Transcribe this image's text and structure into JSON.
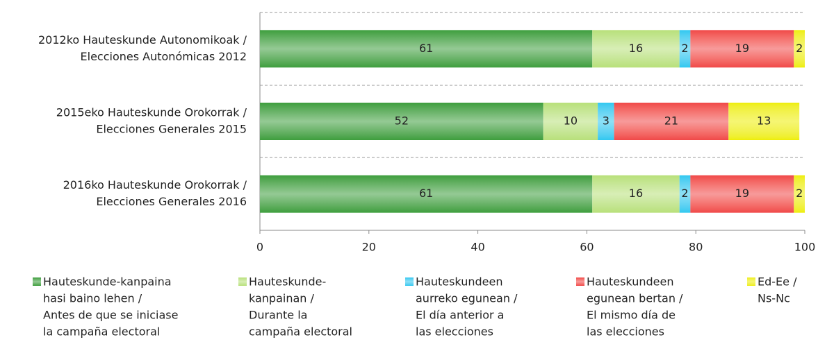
{
  "chart_data": {
    "type": "stacked-barh",
    "categories": [
      [
        "2012ko Hauteskunde Autonomikoak /",
        "Elecciones Autonómicas 2012"
      ],
      [
        "2015eko Hauteskunde Orokorrak /",
        "Elecciones Generales 2015"
      ],
      [
        "2016ko Hauteskunde Orokorrak /",
        "Elecciones Generales 2016"
      ]
    ],
    "series": [
      {
        "name": [
          "Hauteskunde-kanpaina",
          "hasi baino lehen /",
          "Antes de que se iniciase",
          "la campaña electoral"
        ],
        "color": "#3d9e3d",
        "values": [
          61,
          52,
          61
        ]
      },
      {
        "name": [
          "Hauteskunde-",
          "kanpainan /",
          "Durante la",
          "campaña electoral"
        ],
        "color": "#b8e07a",
        "values": [
          16,
          10,
          16
        ]
      },
      {
        "name": [
          "Hauteskundeen",
          "aurreko egunean /",
          "El día anterior a",
          "las elecciones"
        ],
        "color": "#2fc8f0",
        "values": [
          2,
          3,
          2
        ]
      },
      {
        "name": [
          "Hauteskundeen",
          "egunean bertan /",
          "El mismo día de",
          "las elecciones"
        ],
        "color": "#f04848",
        "values": [
          19,
          21,
          19
        ]
      },
      {
        "name": [
          "Ed-Ee /",
          "Ns-Nc"
        ],
        "color": "#eeee00",
        "values": [
          2,
          13,
          2
        ]
      }
    ],
    "xlim": [
      0,
      100
    ],
    "xticks": [
      0,
      20,
      40,
      60,
      80,
      100
    ]
  }
}
